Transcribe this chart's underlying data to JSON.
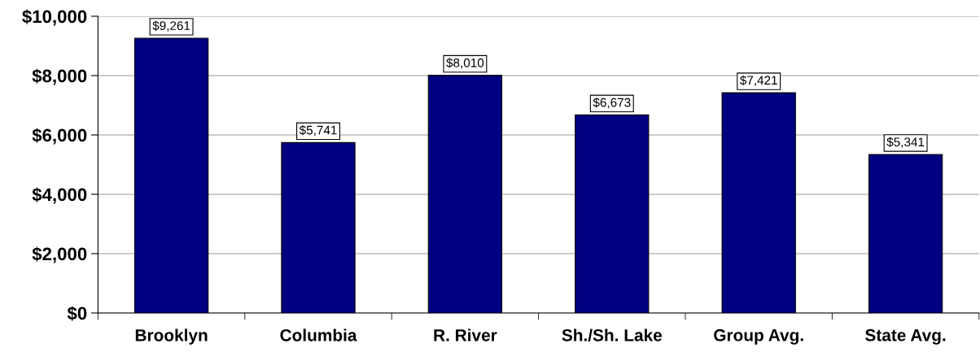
{
  "chart_data": {
    "type": "bar",
    "categories": [
      "Brooklyn",
      "Columbia",
      "R. River",
      "Sh./Sh. Lake",
      "Group Avg.",
      "State Avg."
    ],
    "values": [
      9261,
      5741,
      8010,
      6673,
      7421,
      5341
    ],
    "value_labels": [
      "$9,261",
      "$5,741",
      "$8,010",
      "$6,673",
      "$7,421",
      "$5,341"
    ],
    "color": "#000080",
    "ylim": [
      0,
      10000
    ],
    "yticks": [
      {
        "value": 0,
        "label": "$0"
      },
      {
        "value": 2000,
        "label": "$2,000"
      },
      {
        "value": 4000,
        "label": "$4,000"
      },
      {
        "value": 6000,
        "label": "$6,000"
      },
      {
        "value": 8000,
        "label": "$8,000"
      },
      {
        "value": 10000,
        "label": "$10,000"
      }
    ],
    "grid": "y"
  }
}
